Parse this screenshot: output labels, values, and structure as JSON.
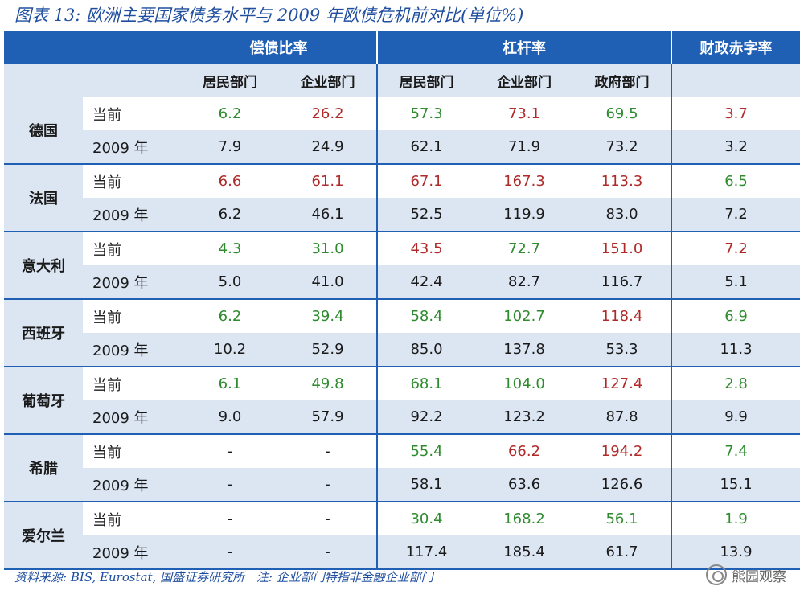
{
  "title": "图表 13:  欧洲主要国家债务水平与 2009 年欧债危机前对比(单位%)",
  "header": {
    "group1": "偿债比率",
    "group2": "杠杆率",
    "group3": "财政赤字率",
    "cols": [
      "居民部门",
      "企业部门",
      "居民部门",
      "企业部门",
      "政府部门"
    ]
  },
  "rows": [
    {
      "country": "德国",
      "current": {
        "label": "当前",
        "values": [
          "6.2",
          "26.2",
          "57.3",
          "73.1",
          "69.5",
          "3.7"
        ],
        "colors": [
          "g",
          "rd",
          "g",
          "rd",
          "g",
          "rd"
        ]
      },
      "y2009": {
        "label": "2009 年",
        "values": [
          "7.9",
          "24.9",
          "62.1",
          "71.9",
          "73.2",
          "3.2"
        ]
      }
    },
    {
      "country": "法国",
      "current": {
        "label": "当前",
        "values": [
          "6.6",
          "61.1",
          "67.1",
          "167.3",
          "113.3",
          "6.5"
        ],
        "colors": [
          "rd",
          "rd",
          "rd",
          "rd",
          "rd",
          "g"
        ]
      },
      "y2009": {
        "label": "2009 年",
        "values": [
          "6.2",
          "46.1",
          "52.5",
          "119.9",
          "83.0",
          "7.2"
        ]
      }
    },
    {
      "country": "意大利",
      "current": {
        "label": "当前",
        "values": [
          "4.3",
          "31.0",
          "43.5",
          "72.7",
          "151.0",
          "7.2"
        ],
        "colors": [
          "g",
          "g",
          "rd",
          "g",
          "rd",
          "rd"
        ]
      },
      "y2009": {
        "label": "2009 年",
        "values": [
          "5.0",
          "41.0",
          "42.4",
          "82.7",
          "116.7",
          "5.1"
        ]
      }
    },
    {
      "country": "西班牙",
      "current": {
        "label": "当前",
        "values": [
          "6.2",
          "39.4",
          "58.4",
          "102.7",
          "118.4",
          "6.9"
        ],
        "colors": [
          "g",
          "g",
          "g",
          "g",
          "rd",
          "g"
        ]
      },
      "y2009": {
        "label": "2009 年",
        "values": [
          "10.2",
          "52.9",
          "85.0",
          "137.8",
          "53.3",
          "11.3"
        ]
      }
    },
    {
      "country": "葡萄牙",
      "current": {
        "label": "当前",
        "values": [
          "6.1",
          "49.8",
          "68.1",
          "104.0",
          "127.4",
          "2.8"
        ],
        "colors": [
          "g",
          "g",
          "g",
          "g",
          "rd",
          "g"
        ]
      },
      "y2009": {
        "label": "2009 年",
        "values": [
          "9.0",
          "57.9",
          "92.2",
          "123.2",
          "87.8",
          "9.9"
        ]
      }
    },
    {
      "country": "希腊",
      "current": {
        "label": "当前",
        "values": [
          "-",
          "-",
          "55.4",
          "66.2",
          "194.2",
          "7.4"
        ],
        "colors": [
          "k",
          "k",
          "g",
          "rd",
          "rd",
          "g"
        ]
      },
      "y2009": {
        "label": "2009 年",
        "values": [
          "-",
          "-",
          "58.1",
          "63.6",
          "126.6",
          "15.1"
        ]
      }
    },
    {
      "country": "爱尔兰",
      "current": {
        "label": "当前",
        "values": [
          "-",
          "-",
          "30.4",
          "168.2",
          "56.1",
          "1.9"
        ],
        "colors": [
          "k",
          "k",
          "g",
          "g",
          "g",
          "g"
        ]
      },
      "y2009": {
        "label": "2009 年",
        "values": [
          "-",
          "-",
          "117.4",
          "185.4",
          "61.7",
          "13.9"
        ]
      }
    }
  ],
  "footer": {
    "source": "资料来源: BIS, Eurostat, 国盛证券研究所",
    "note": "注: 企业部门特指非金融企业部门"
  },
  "watermark": "熊园观察",
  "colors": {
    "header_bg": "#1f5fb4",
    "stripe": "#dce6f3",
    "green": "#2e8b2e",
    "red": "#b02a2a",
    "title": "#1f4e9e"
  }
}
